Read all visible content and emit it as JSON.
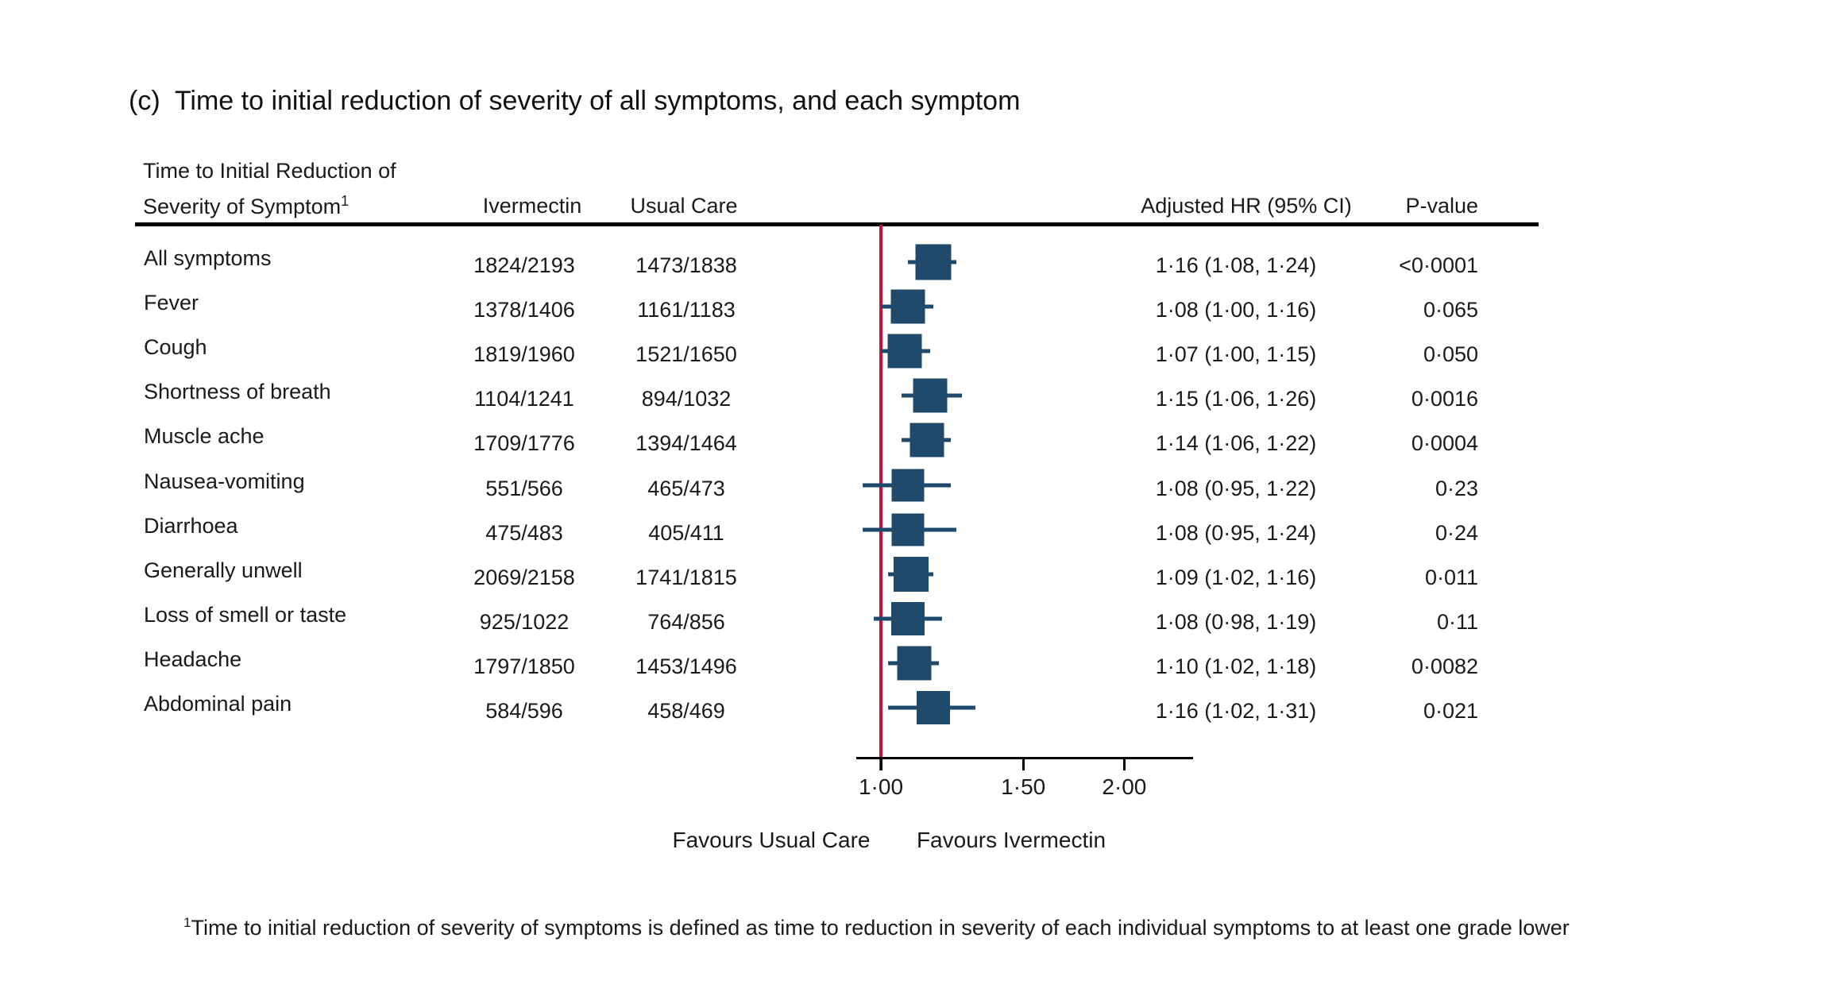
{
  "title": "(c)  Time to initial reduction of severity of all symptoms, and each symptom",
  "table_header": {
    "stub_line1": "Time to Initial Reduction of",
    "stub_line2": "Severity of Symptom",
    "stub_superscript": "1",
    "col_ivermectin": "Ivermectin",
    "col_usual_care": "Usual Care",
    "col_adjusted_hr": "Adjusted HR (95% CI)",
    "col_p_value": "P-value"
  },
  "chart_data": {
    "type": "scatter",
    "subtype": "forest-plot",
    "x_axis": {
      "scale": "log",
      "range": [
        0.93,
        2.45
      ],
      "reference_line": 1.0,
      "ticks": [
        {
          "value": 1.0,
          "label": "1·00"
        },
        {
          "value": 1.5,
          "label": "1·50"
        },
        {
          "value": 2.0,
          "label": "2·00"
        }
      ]
    },
    "favours_left": "Favours Usual Care",
    "favours_right": "Favours Ivermectin",
    "rows": [
      {
        "label": "All symptoms",
        "ivermectin": "1824/2193",
        "usual_care": "1473/1838",
        "hr": 1.16,
        "ci_low": 1.08,
        "ci_high": 1.24,
        "hr_text": "1·16 (1·08, 1·24)",
        "p_text": "<0·0001",
        "marker_size_px": 45
      },
      {
        "label": "Fever",
        "ivermectin": "1378/1406",
        "usual_care": "1161/1183",
        "hr": 1.08,
        "ci_low": 1.0,
        "ci_high": 1.16,
        "hr_text": "1·08 (1·00, 1·16)",
        "p_text": "0·065",
        "marker_size_px": 43
      },
      {
        "label": "Cough",
        "ivermectin": "1819/1960",
        "usual_care": "1521/1650",
        "hr": 1.07,
        "ci_low": 1.0,
        "ci_high": 1.15,
        "hr_text": "1·07 (1·00, 1·15)",
        "p_text": "0·050",
        "marker_size_px": 43
      },
      {
        "label": "Shortness of breath",
        "ivermectin": "1104/1241",
        "usual_care": "894/1032",
        "hr": 1.15,
        "ci_low": 1.06,
        "ci_high": 1.26,
        "hr_text": "1·15 (1·06, 1·26)",
        "p_text": "0·0016",
        "marker_size_px": 43
      },
      {
        "label": "Muscle ache",
        "ivermectin": "1709/1776",
        "usual_care": "1394/1464",
        "hr": 1.14,
        "ci_low": 1.06,
        "ci_high": 1.22,
        "hr_text": "1·14 (1·06, 1·22)",
        "p_text": "0·0004",
        "marker_size_px": 43
      },
      {
        "label": "Nausea-vomiting",
        "ivermectin": "551/566",
        "usual_care": "465/473",
        "hr": 1.08,
        "ci_low": 0.95,
        "ci_high": 1.22,
        "hr_text": "1·08 (0·95, 1·22)",
        "p_text": "0·23",
        "marker_size_px": 41
      },
      {
        "label": "Diarrhoea",
        "ivermectin": "475/483",
        "usual_care": "405/411",
        "hr": 1.08,
        "ci_low": 0.95,
        "ci_high": 1.24,
        "hr_text": "1·08 (0·95, 1·24)",
        "p_text": "0·24",
        "marker_size_px": 41
      },
      {
        "label": "Generally unwell",
        "ivermectin": "2069/2158",
        "usual_care": "1741/1815",
        "hr": 1.09,
        "ci_low": 1.02,
        "ci_high": 1.16,
        "hr_text": "1·09 (1·02, 1·16)",
        "p_text": "0·011",
        "marker_size_px": 44
      },
      {
        "label": "Loss of smell or taste",
        "ivermectin": "925/1022",
        "usual_care": "764/856",
        "hr": 1.08,
        "ci_low": 0.98,
        "ci_high": 1.19,
        "hr_text": "1·08 (0·98, 1·19)",
        "p_text": "0·11",
        "marker_size_px": 42
      },
      {
        "label": "Headache",
        "ivermectin": "1797/1850",
        "usual_care": "1453/1496",
        "hr": 1.1,
        "ci_low": 1.02,
        "ci_high": 1.18,
        "hr_text": "1·10 (1·02, 1·18)",
        "p_text": "0·0082",
        "marker_size_px": 43
      },
      {
        "label": "Abdominal pain",
        "ivermectin": "584/596",
        "usual_care": "458/469",
        "hr": 1.16,
        "ci_low": 1.02,
        "ci_high": 1.31,
        "hr_text": "1·16 (1·02, 1·31)",
        "p_text": "0·021",
        "marker_size_px": 42
      }
    ]
  },
  "footnote_superscript": "1",
  "footnote": "Time to initial reduction of severity of symptoms is defined as time to reduction in severity of each individual symptoms to at least one grade lower",
  "colors": {
    "marker": "#1F4A6B",
    "reference_line": "#C8103A",
    "axis": "#000000",
    "text": "#1a1a1a"
  }
}
